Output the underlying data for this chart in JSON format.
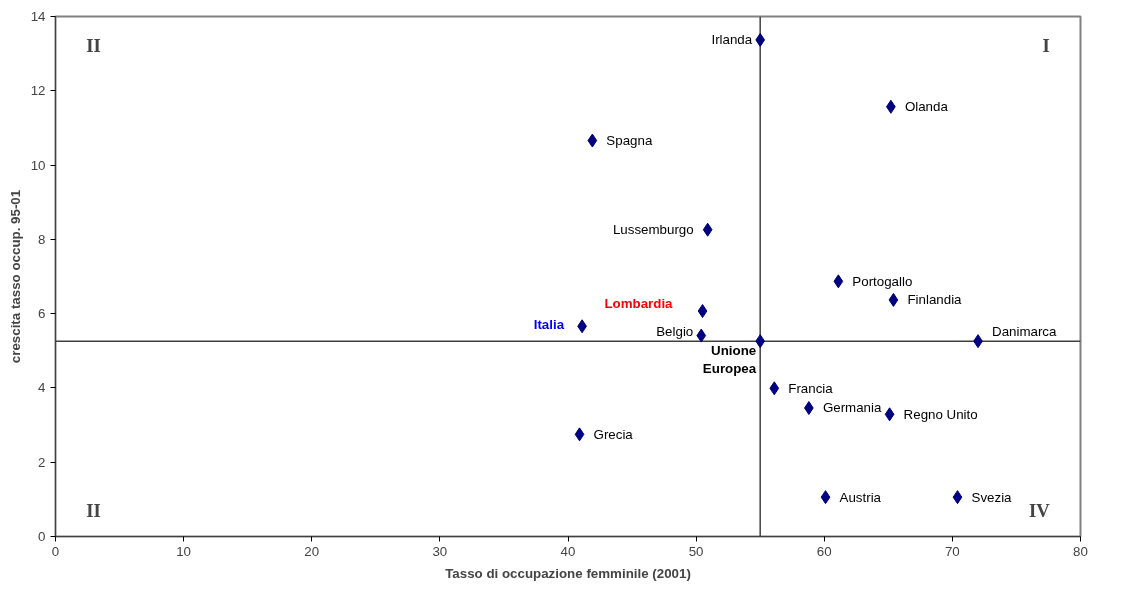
{
  "chart_data": {
    "type": "scatter",
    "xlabel": "Tasso di occupazione femminile (2001)",
    "ylabel": "crescita tasso occup. 95-01",
    "x": [
      55,
      65.2,
      41.9,
      50.9,
      61.1,
      65.4,
      50.5,
      41.1,
      50.4,
      55,
      72.0,
      56.1,
      58.8,
      65.1,
      40.9,
      60.1,
      70.4
    ],
    "series": [
      {
        "color": "#000080",
        "values": [
          13.37,
          11.57,
          10.66,
          8.26,
          6.87,
          6.37,
          6.07,
          5.66,
          5.41,
          5.26,
          5.26,
          3.99,
          3.46,
          3.29,
          2.75,
          1.06,
          1.06
        ]
      }
    ],
    "marker": "diamond",
    "xlim": [
      0,
      80
    ],
    "xticks": [
      0,
      10,
      20,
      30,
      40,
      50,
      60,
      70,
      80
    ],
    "ylim": [
      0,
      14
    ],
    "yticks": [
      0,
      2,
      4,
      6,
      8,
      10,
      12,
      14
    ],
    "ref_lines": [
      {
        "axis": "x",
        "value": 55
      },
      {
        "axis": "y",
        "value": 5.26
      }
    ],
    "grid": false,
    "annotations": [
      {
        "text": "Irlanda",
        "x": 55,
        "y": 13.37
      },
      {
        "text": "Olanda",
        "x": 65.2,
        "y": 11.57
      },
      {
        "text": "Spagna",
        "x": 41.9,
        "y": 10.66
      },
      {
        "text": "Lussemburgo",
        "x": 50.9,
        "y": 8.26
      },
      {
        "text": "Portogallo",
        "x": 61.1,
        "y": 6.87
      },
      {
        "text": "Finlandia",
        "x": 65.4,
        "y": 6.37
      },
      {
        "text": "Lombardia",
        "x": 50.5,
        "y": 6.07
      },
      {
        "text": "Italia",
        "x": 41.1,
        "y": 5.66
      },
      {
        "text": "Belgio",
        "x": 50.4,
        "y": 5.41
      },
      {
        "text": "Unione\nEuropea",
        "x": 55,
        "y": 5.26
      },
      {
        "text": "Danimarca",
        "x": 72.0,
        "y": 5.26
      },
      {
        "text": "Francia",
        "x": 56.1,
        "y": 3.99
      },
      {
        "text": "Germania",
        "x": 58.8,
        "y": 3.46
      },
      {
        "text": "Regno Unito",
        "x": 65.1,
        "y": 3.29
      },
      {
        "text": "Grecia",
        "x": 40.9,
        "y": 2.75
      },
      {
        "text": "Austria",
        "x": 60.1,
        "y": 1.06
      },
      {
        "text": "Svezia",
        "x": 70.4,
        "y": 1.06
      },
      "II",
      "I",
      "II",
      "IV"
    ]
  }
}
